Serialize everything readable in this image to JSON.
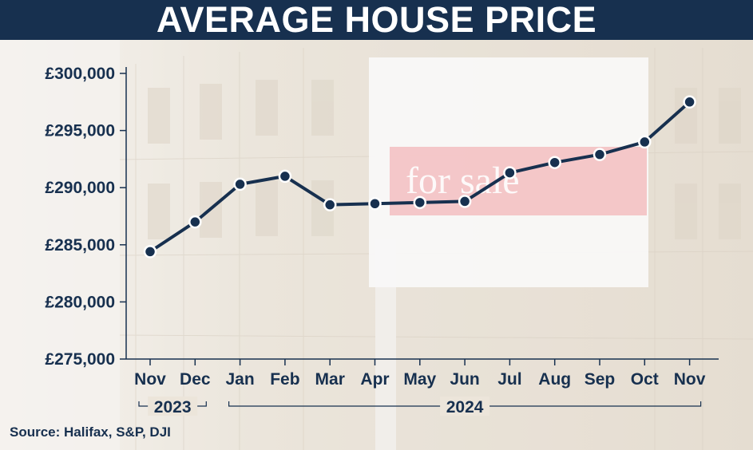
{
  "title": "AVERAGE HOUSE PRICE",
  "source": "Source: Halifax, S&P, DJI",
  "sign_text": "for sale",
  "colors": {
    "title_bar": "#17304f",
    "line": "#17304f",
    "marker_fill": "#17304f",
    "marker_stroke": "#ffffff",
    "text": "#17304f"
  },
  "chart_data": {
    "type": "line",
    "title": "AVERAGE HOUSE PRICE",
    "xlabel": "",
    "ylabel": "",
    "categories": [
      "Nov",
      "Dec",
      "Jan",
      "Feb",
      "Mar",
      "Apr",
      "May",
      "Jun",
      "Jul",
      "Aug",
      "Sep",
      "Oct",
      "Nov"
    ],
    "values": [
      284400,
      287000,
      290300,
      291000,
      288500,
      288600,
      288700,
      288800,
      291300,
      292200,
      292900,
      294000,
      297500
    ],
    "ylim": [
      275000,
      300000
    ],
    "yticks": [
      275000,
      280000,
      285000,
      290000,
      295000,
      300000
    ],
    "ytick_labels": [
      "£275,000",
      "£280,000",
      "£285,000",
      "£290,000",
      "£295,000",
      "£300,000"
    ],
    "year_groups": [
      {
        "label": "2023",
        "start": 0,
        "end": 1
      },
      {
        "label": "2024",
        "start": 2,
        "end": 12
      }
    ],
    "grid": false,
    "legend": "none"
  }
}
